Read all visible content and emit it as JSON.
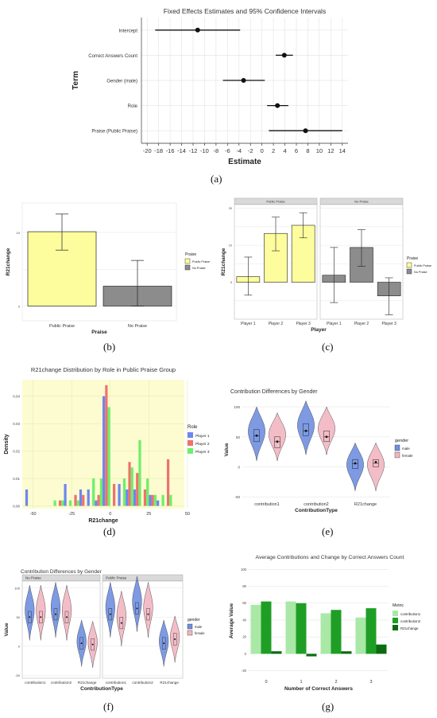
{
  "captions": {
    "a": "(a)",
    "b": "(b)",
    "c": "(c)",
    "d": "(d)",
    "e": "(e)",
    "f": "(f)",
    "g": "(g)"
  },
  "chart_data": [
    {
      "id": "a",
      "type": "scatter",
      "title": "Fixed Effects Estimates and 95% Confidence Intervals",
      "xlabel": "Estimate",
      "ylabel": "Term",
      "xlim": [
        -21,
        15
      ],
      "xticks": [
        "-20",
        "-18",
        "-16",
        "-14",
        "-12",
        "-10",
        "-8",
        "-6",
        "-4",
        "-2",
        "0",
        "2",
        "4",
        "6",
        "8",
        "10",
        "12",
        "14"
      ],
      "terms": [
        "Intercept",
        "Correct Answers Count",
        "Gender (male)",
        "Role",
        "Praise (Public Praise)"
      ],
      "estimates": [
        -11.2,
        3.9,
        -3.2,
        2.7,
        7.6
      ],
      "ci_low": [
        -18.6,
        2.4,
        -6.8,
        0.9,
        1.2
      ],
      "ci_high": [
        -3.8,
        5.4,
        0.5,
        4.6,
        14.0
      ]
    },
    {
      "id": "b",
      "type": "bar",
      "xlabel": "Praise",
      "ylabel": "R21change",
      "categories": [
        "Public Praise",
        "No Praise"
      ],
      "values": [
        10.1,
        2.7
      ],
      "err_low": [
        7.6,
        0.0
      ],
      "err_high": [
        12.5,
        6.2
      ],
      "ylim": [
        -2,
        14
      ],
      "yticks": [
        "0",
        "10"
      ],
      "legend_title": "Praise",
      "legend": [
        "Public Praise",
        "No Praise"
      ],
      "colors": [
        "#fdfd9d",
        "#8c8c8c"
      ]
    },
    {
      "id": "c",
      "type": "bar",
      "xlabel": "Player",
      "ylabel": "R21change",
      "facets": [
        "Public Praise",
        "No Praise"
      ],
      "categories": [
        "Player 1",
        "Player 2",
        "Player 3"
      ],
      "series": [
        {
          "facet": "Public Praise",
          "values": [
            1.5,
            13.2,
            15.4
          ],
          "err_low": [
            -3.5,
            8.5,
            12.0
          ],
          "err_high": [
            6.8,
            17.6,
            18.8
          ]
        },
        {
          "facet": "No Praise",
          "values": [
            1.9,
            9.4,
            -3.7
          ],
          "err_low": [
            -5.5,
            4.3,
            -8.8
          ],
          "err_high": [
            9.4,
            14.2,
            1.2
          ]
        }
      ],
      "ylim": [
        -10,
        21
      ],
      "yticks": [
        "0",
        "10",
        "20"
      ],
      "legend_title": "Praise",
      "legend": [
        "Public Praise",
        "No Praise"
      ],
      "colors": [
        "#fdfd9d",
        "#8c8c8c"
      ]
    },
    {
      "id": "d",
      "type": "bar",
      "title": "R21change Distribution by Role in Public Praise Group",
      "xlabel": "R21change",
      "ylabel": "Density",
      "xlim": [
        -57,
        48
      ],
      "ylim": [
        -0.001,
        0.046
      ],
      "xticks": [
        "-50",
        "-25",
        "0",
        "25",
        "50"
      ],
      "yticks": [
        "0.00",
        "0.01",
        "0.02",
        "0.03",
        "0.04"
      ],
      "bin_width": 5,
      "bin_centers": [
        -52.5,
        -37.5,
        -32.5,
        -27.5,
        -22.5,
        -17.5,
        -12.5,
        -7.5,
        -2.5,
        2.5,
        7.5,
        12.5,
        17.5,
        22.5,
        27.5,
        32.5,
        37.5,
        42.5
      ],
      "legend_title": "Role",
      "series": [
        {
          "name": "Player 1",
          "color": "#6e86f2",
          "values": [
            0.006,
            0,
            0,
            0.008,
            0,
            0.006,
            0.006,
            0.002,
            0.04,
            0,
            0.008,
            0.006,
            0.006,
            0,
            0.004,
            0.002,
            0,
            0
          ]
        },
        {
          "name": "Player 2",
          "color": "#f0726c",
          "values": [
            0,
            0,
            0.002,
            0,
            0.004,
            0.004,
            0,
            0.004,
            0.044,
            0.008,
            0,
            0.016,
            0.012,
            0.006,
            0.004,
            0,
            0.017,
            0
          ]
        },
        {
          "name": "Player 3",
          "color": "#6cf06a",
          "values": [
            0,
            0.002,
            0.002,
            0.002,
            0.002,
            0,
            0.01,
            0.01,
            0.036,
            0,
            0.01,
            0.014,
            0.024,
            0.01,
            0.004,
            0.004,
            0.004,
            0
          ]
        }
      ],
      "background": "#fcfcd0"
    },
    {
      "id": "e",
      "type": "violin",
      "title": "Contribution Differences by Gender",
      "xlabel": "ContributionType",
      "ylabel": "Value",
      "categories": [
        "contribution1",
        "contribution2",
        "R21change"
      ],
      "ylim": [
        -55,
        112
      ],
      "yticks": [
        "-50",
        "0",
        "50",
        "100"
      ],
      "legend_title": "gender",
      "legend": [
        "male",
        "female"
      ],
      "colors": [
        "#6f8fe0",
        "#f2b6c1"
      ],
      "groups": [
        {
          "median": [
            52,
            60,
            5
          ],
          "q1": [
            42,
            52,
            -3
          ],
          "q3": [
            62,
            72,
            12
          ],
          "mean": [
            52,
            60,
            6
          ],
          "min": [
            10,
            20,
            -40
          ],
          "max": [
            100,
            110,
            40
          ]
        },
        {
          "median": [
            42,
            50,
            6
          ],
          "q1": [
            32,
            42,
            0
          ],
          "q3": [
            50,
            60,
            12
          ],
          "mean": [
            42,
            50,
            8
          ],
          "min": [
            10,
            20,
            -40
          ],
          "max": [
            90,
            100,
            40
          ]
        }
      ]
    },
    {
      "id": "f",
      "type": "violin",
      "title": "Contribution Differences by Gender",
      "xlabel": "ContributionType",
      "ylabel": "Value",
      "facets": [
        "No Praise",
        "Public Praise"
      ],
      "categories": [
        "contribution1",
        "contribution2",
        "R21change"
      ],
      "ylim": [
        -55,
        112
      ],
      "yticks": [
        "-50",
        "0",
        "50",
        "100"
      ],
      "legend_title": "gender",
      "legend": [
        "male",
        "female"
      ],
      "colors": [
        "#6f8fe0",
        "#f2b6c1"
      ],
      "groups": [
        {
          "facet": "No Praise",
          "male_median": [
            50,
            55,
            5
          ],
          "female_median": [
            50,
            50,
            3
          ]
        },
        {
          "facet": "Public Praise",
          "male_median": [
            55,
            65,
            5
          ],
          "female_median": [
            40,
            55,
            12
          ]
        }
      ]
    },
    {
      "id": "g",
      "type": "bar",
      "title": "Average Contributions and Change by Correct Answers Count",
      "xlabel": "Number of Correct Answers",
      "ylabel": "Average Value",
      "categories": [
        "0",
        "1",
        "2",
        "3"
      ],
      "ylim": [
        -27,
        105
      ],
      "yticks": [
        "-20",
        "0",
        "20",
        "40",
        "60",
        "80",
        "100"
      ],
      "legend_title": "Metric",
      "series": [
        {
          "name": "contribution1",
          "color": "#a9e8a6",
          "values": [
            58,
            62,
            48,
            43
          ]
        },
        {
          "name": "contribution2",
          "color": "#1f9e26",
          "values": [
            62,
            60,
            52,
            54
          ]
        },
        {
          "name": "R21change",
          "color": "#0b6b12",
          "values": [
            3,
            -3,
            3,
            11
          ]
        }
      ]
    }
  ]
}
